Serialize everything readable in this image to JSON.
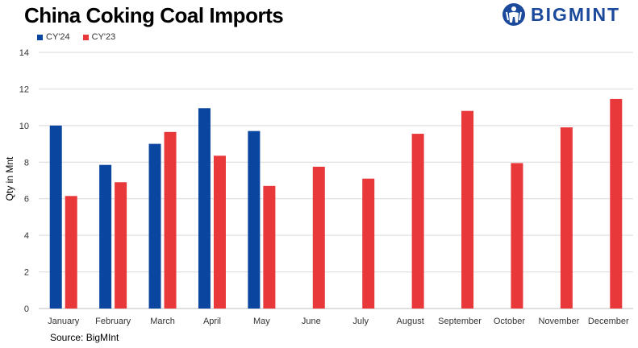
{
  "header": {
    "title": "China Coking Coal Imports",
    "logo_text": "BIGMINT"
  },
  "footer": {
    "source": "Source:  BigMInt"
  },
  "colors": {
    "cy24": "#0a46a0",
    "cy23": "#e8383a",
    "grid": "#d9d9d9",
    "logo": "#1b4a9c"
  },
  "chart_data": {
    "type": "bar",
    "title": "China Coking Coal Imports",
    "xlabel": "",
    "ylabel": "Qty in Mnt",
    "ylim": [
      0,
      14
    ],
    "yticks": [
      0,
      2,
      4,
      6,
      8,
      10,
      12,
      14
    ],
    "grid": true,
    "legend_position": "top-left",
    "categories": [
      "January",
      "February",
      "March",
      "April",
      "May",
      "June",
      "July",
      "August",
      "September",
      "October",
      "November",
      "December"
    ],
    "series": [
      {
        "name": "CY'24",
        "values": [
          10.0,
          7.85,
          9.0,
          10.95,
          9.7,
          null,
          null,
          null,
          null,
          null,
          null,
          null
        ]
      },
      {
        "name": "CY'23",
        "values": [
          6.15,
          6.9,
          9.65,
          8.35,
          6.7,
          7.75,
          7.1,
          9.55,
          10.8,
          7.95,
          9.9,
          11.45
        ]
      }
    ]
  }
}
